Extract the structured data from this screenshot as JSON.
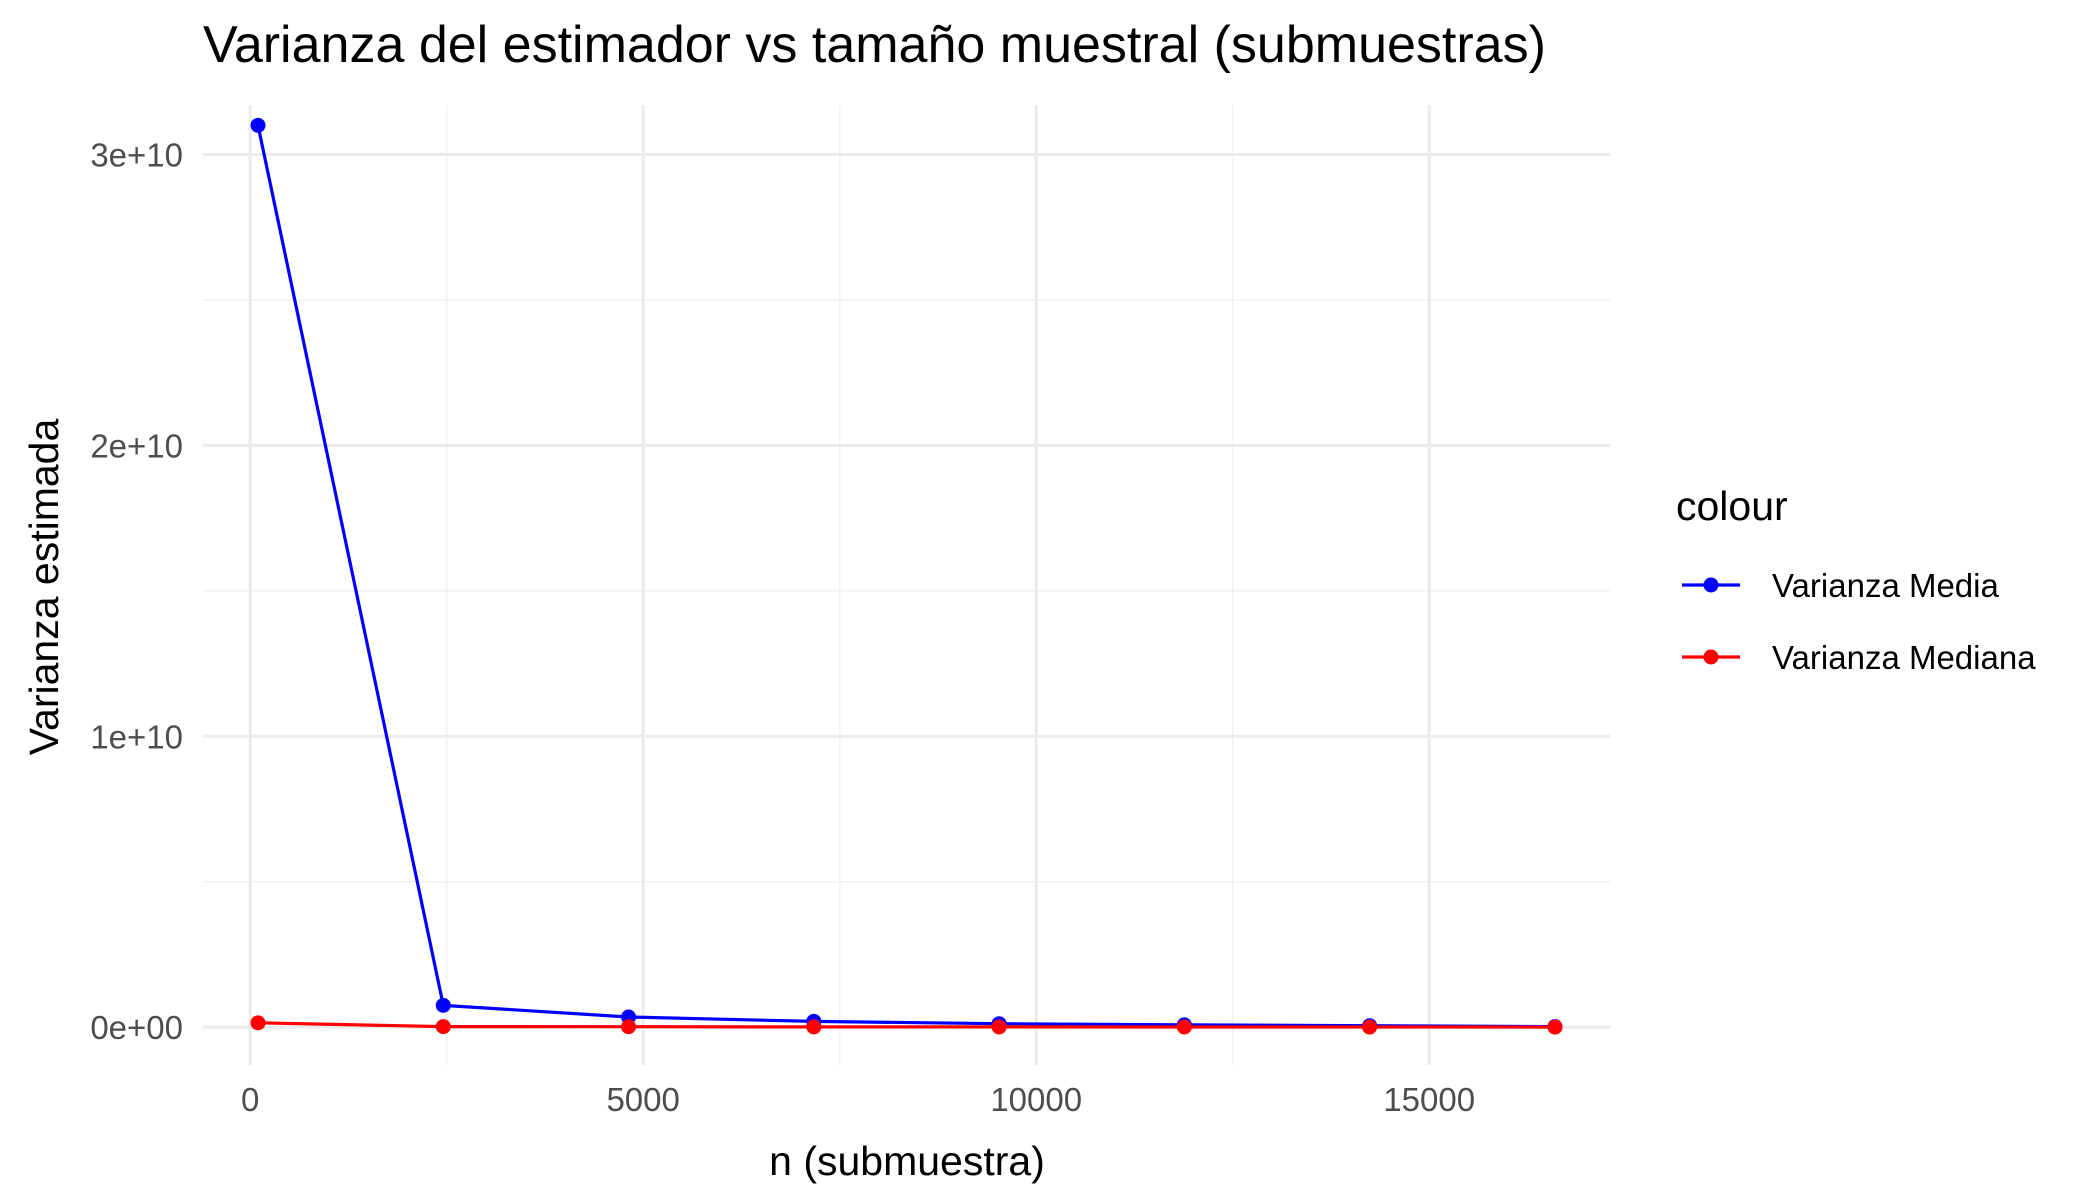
{
  "chart_data": {
    "type": "line",
    "title": "Varianza del estimador vs tamaño muestral (submuestras)",
    "xlabel": "n (submuestra)",
    "ylabel": "Varianza estimada",
    "x": [
      100,
      2457,
      4814,
      7171,
      9528,
      11885,
      14242,
      16600
    ],
    "xlim": [
      -600,
      17300
    ],
    "ylim": [
      -1300000000,
      31700000000
    ],
    "x_ticks": [
      0,
      5000,
      10000,
      15000
    ],
    "x_tick_labels": [
      "0",
      "5000",
      "10000",
      "15000"
    ],
    "x_minor_ticks": [
      2500,
      7500,
      12500
    ],
    "y_ticks": [
      0,
      10000000000,
      20000000000,
      30000000000
    ],
    "y_tick_labels": [
      "0e+00",
      "1e+10",
      "2e+10",
      "3e+10"
    ],
    "y_minor_ticks": [
      5000000000,
      15000000000,
      25000000000
    ],
    "grid": true,
    "legend": {
      "title": "colour",
      "position": "right"
    },
    "series": [
      {
        "name": "Varianza Media",
        "color": "#0000FF",
        "values": [
          31000000000,
          750000000,
          350000000,
          200000000,
          120000000,
          80000000,
          50000000,
          20000000
        ]
      },
      {
        "name": "Varianza Mediana",
        "color": "#FF0000",
        "values": [
          150000000,
          20000000,
          15000000,
          10000000,
          8000000,
          6000000,
          5000000,
          4000000
        ]
      }
    ]
  }
}
